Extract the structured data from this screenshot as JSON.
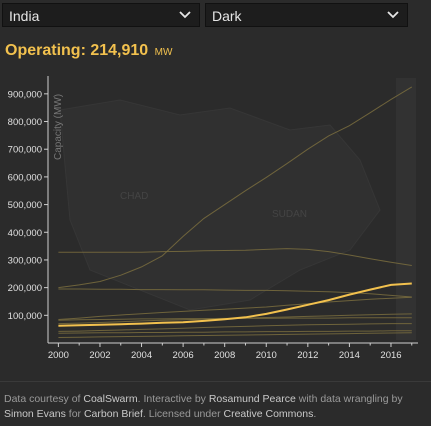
{
  "controls": {
    "country": {
      "value": "India"
    },
    "theme": {
      "value": "Dark"
    }
  },
  "headline": {
    "label": "Operating:",
    "value": "214,910",
    "unit": "MW"
  },
  "colors": {
    "accent": "#f2c14e",
    "background": "#2b2b2b",
    "secondary_line": "#7a6d3e"
  },
  "map_labels": [
    "CHAD",
    "SUDAN"
  ],
  "chart_data": {
    "type": "line",
    "ylabel": "Capacity (MW)",
    "xlabel": "",
    "ylim": [
      0,
      950000
    ],
    "xlim": [
      1999.5,
      2017.3
    ],
    "x_ticks": [
      2000,
      2002,
      2004,
      2006,
      2008,
      2010,
      2012,
      2014,
      2016
    ],
    "x_tick_labels": [
      "2000",
      "2002",
      "2004",
      "2006",
      "2008",
      "2010",
      "2012",
      "2014",
      "2016"
    ],
    "y_ticks": [
      100000,
      200000,
      300000,
      400000,
      500000,
      600000,
      700000,
      800000,
      900000
    ],
    "y_tick_labels": [
      "100,000",
      "200,000",
      "300,000",
      "400,000",
      "500,000",
      "600,000",
      "700,000",
      "800,000",
      "900,000"
    ],
    "grid": false,
    "x": [
      2000,
      2001,
      2002,
      2003,
      2004,
      2005,
      2006,
      2007,
      2008,
      2009,
      2010,
      2011,
      2012,
      2013,
      2014,
      2015,
      2016,
      2017
    ],
    "highlight_series": {
      "values": [
        62000,
        64000,
        66000,
        68000,
        70000,
        73000,
        75000,
        80000,
        86000,
        93000,
        105000,
        121000,
        138000,
        155000,
        175000,
        193000,
        210000,
        214910
      ]
    },
    "series": [
      {
        "values": [
          200000,
          210000,
          222000,
          245000,
          275000,
          315000,
          385000,
          450000,
          500000,
          550000,
          598000,
          648000,
          700000,
          748000,
          785000,
          832000,
          880000,
          925000
        ]
      },
      {
        "values": [
          328000,
          328000,
          328000,
          328000,
          328000,
          330000,
          331000,
          333000,
          334000,
          335000,
          338000,
          341000,
          338000,
          330000,
          318000,
          304000,
          292000,
          280000
        ]
      },
      {
        "values": [
          195000,
          195000,
          194000,
          194000,
          193000,
          193000,
          192000,
          192000,
          191000,
          190000,
          190000,
          189000,
          187000,
          185000,
          182000,
          178000,
          172000,
          166000
        ]
      },
      {
        "values": [
          85000,
          90000,
          96000,
          101000,
          106000,
          110000,
          114000,
          118000,
          122000,
          126000,
          130000,
          136000,
          142000,
          148000,
          153000,
          158000,
          162000,
          165000
        ]
      },
      {
        "values": [
          70000,
          72000,
          74000,
          77000,
          80000,
          82000,
          84000,
          86000,
          88000,
          90000,
          92000,
          94000,
          96000,
          98000,
          100000,
          102000,
          104000,
          105000
        ]
      },
      {
        "values": [
          82000,
          84000,
          85000,
          86000,
          87000,
          87000,
          88000,
          88000,
          89000,
          89000,
          89000,
          90000,
          90000,
          90000,
          91000,
          91000,
          91000,
          91000
        ]
      },
      {
        "values": [
          42000,
          43000,
          45000,
          47000,
          49000,
          51000,
          53000,
          56000,
          58000,
          60000,
          62000,
          64000,
          66000,
          67000,
          68000,
          69000,
          70000,
          70000
        ]
      },
      {
        "values": [
          35000,
          36000,
          37000,
          37000,
          38000,
          38000,
          39000,
          39000,
          40000,
          40000,
          41000,
          41000,
          42000,
          42000,
          43000,
          43000,
          44000,
          44000
        ]
      },
      {
        "values": [
          20000,
          21000,
          22000,
          23000,
          24000,
          25000,
          26000,
          27000,
          28000,
          29000,
          30000,
          31000,
          32000,
          33000,
          34000,
          35000,
          36000,
          37000
        ]
      }
    ]
  },
  "footer": {
    "t1": "Data courtesy of ",
    "l1": "CoalSwarm",
    "t2": ". Interactive by ",
    "l2": "Rosamund Pearce",
    "t3": " with data wrangling by ",
    "l3": "Simon Evans",
    "t4": " for ",
    "l4": "Carbon Brief",
    "t5": ". Licensed under ",
    "l5": "Creative Commons",
    "t6": "."
  }
}
